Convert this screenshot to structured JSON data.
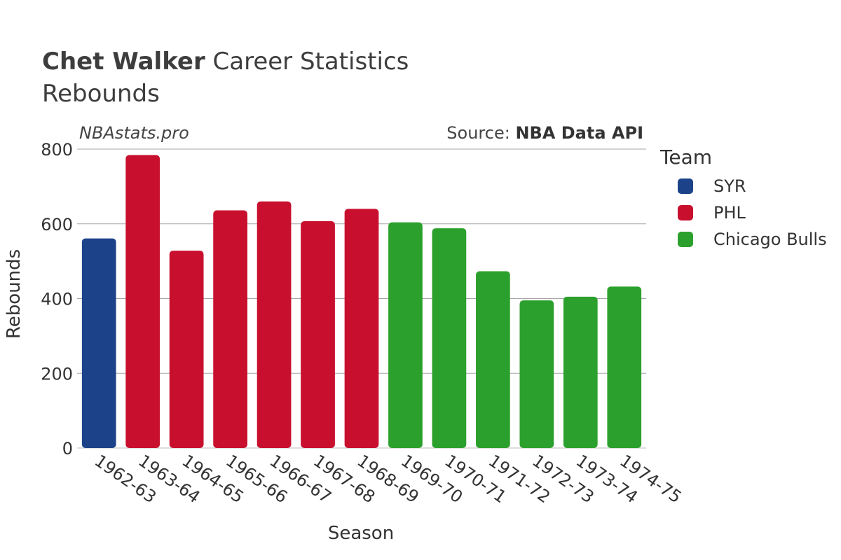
{
  "header": {
    "title_bold": "Chet Walker",
    "title_rest": " Career Statistics",
    "subtitle": "Rebounds"
  },
  "watermark": "NBAstats.pro",
  "source": {
    "prefix": "Source: ",
    "name": "NBA Data API"
  },
  "legend": {
    "title": "Team",
    "items": [
      {
        "label": "SYR",
        "color": "#1c4389"
      },
      {
        "label": "PHL",
        "color": "#c8102e"
      },
      {
        "label": "Chicago Bulls",
        "color": "#2ca02c"
      }
    ]
  },
  "chart_data": {
    "type": "bar",
    "title": "Chet Walker Career Statistics",
    "subtitle": "Rebounds",
    "xlabel": "Season",
    "ylabel": "Rebounds",
    "ylim": [
      0,
      800
    ],
    "yticks": [
      0,
      200,
      400,
      600,
      800
    ],
    "grid": true,
    "legend_position": "right",
    "categories": [
      "1962-63",
      "1963-64",
      "1964-65",
      "1965-66",
      "1966-67",
      "1967-68",
      "1968-69",
      "1969-70",
      "1970-71",
      "1971-72",
      "1972-73",
      "1973-74",
      "1974-75"
    ],
    "values": [
      561,
      784,
      528,
      636,
      660,
      607,
      640,
      604,
      588,
      473,
      395,
      405,
      432
    ],
    "teams": [
      "SYR",
      "PHL",
      "PHL",
      "PHL",
      "PHL",
      "PHL",
      "PHL",
      "Chicago Bulls",
      "Chicago Bulls",
      "Chicago Bulls",
      "Chicago Bulls",
      "Chicago Bulls",
      "Chicago Bulls"
    ]
  }
}
